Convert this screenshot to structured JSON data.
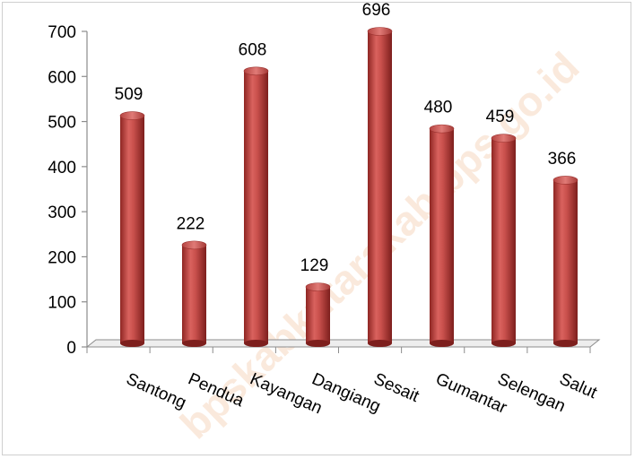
{
  "chart_data": {
    "type": "bar",
    "categories": [
      "Santong",
      "Pendua",
      "Kayangan",
      "Dangiang",
      "Sesait",
      "Gumantar",
      "Selengan",
      "Salut"
    ],
    "values": [
      509,
      222,
      608,
      129,
      696,
      480,
      459,
      366
    ],
    "data_labels": [
      "509",
      "222",
      "608",
      "129",
      "696",
      "480",
      "459",
      "366"
    ],
    "ylim": [
      0,
      700
    ],
    "yticks": [
      "0",
      "100",
      "200",
      "300",
      "400",
      "500",
      "600",
      "700"
    ],
    "title": "",
    "xlabel": "",
    "ylabel": "",
    "grid": false,
    "legend": "none",
    "bar_color": "#c0504d"
  },
  "watermark": "bpskabkutarakab.bps.go.id"
}
